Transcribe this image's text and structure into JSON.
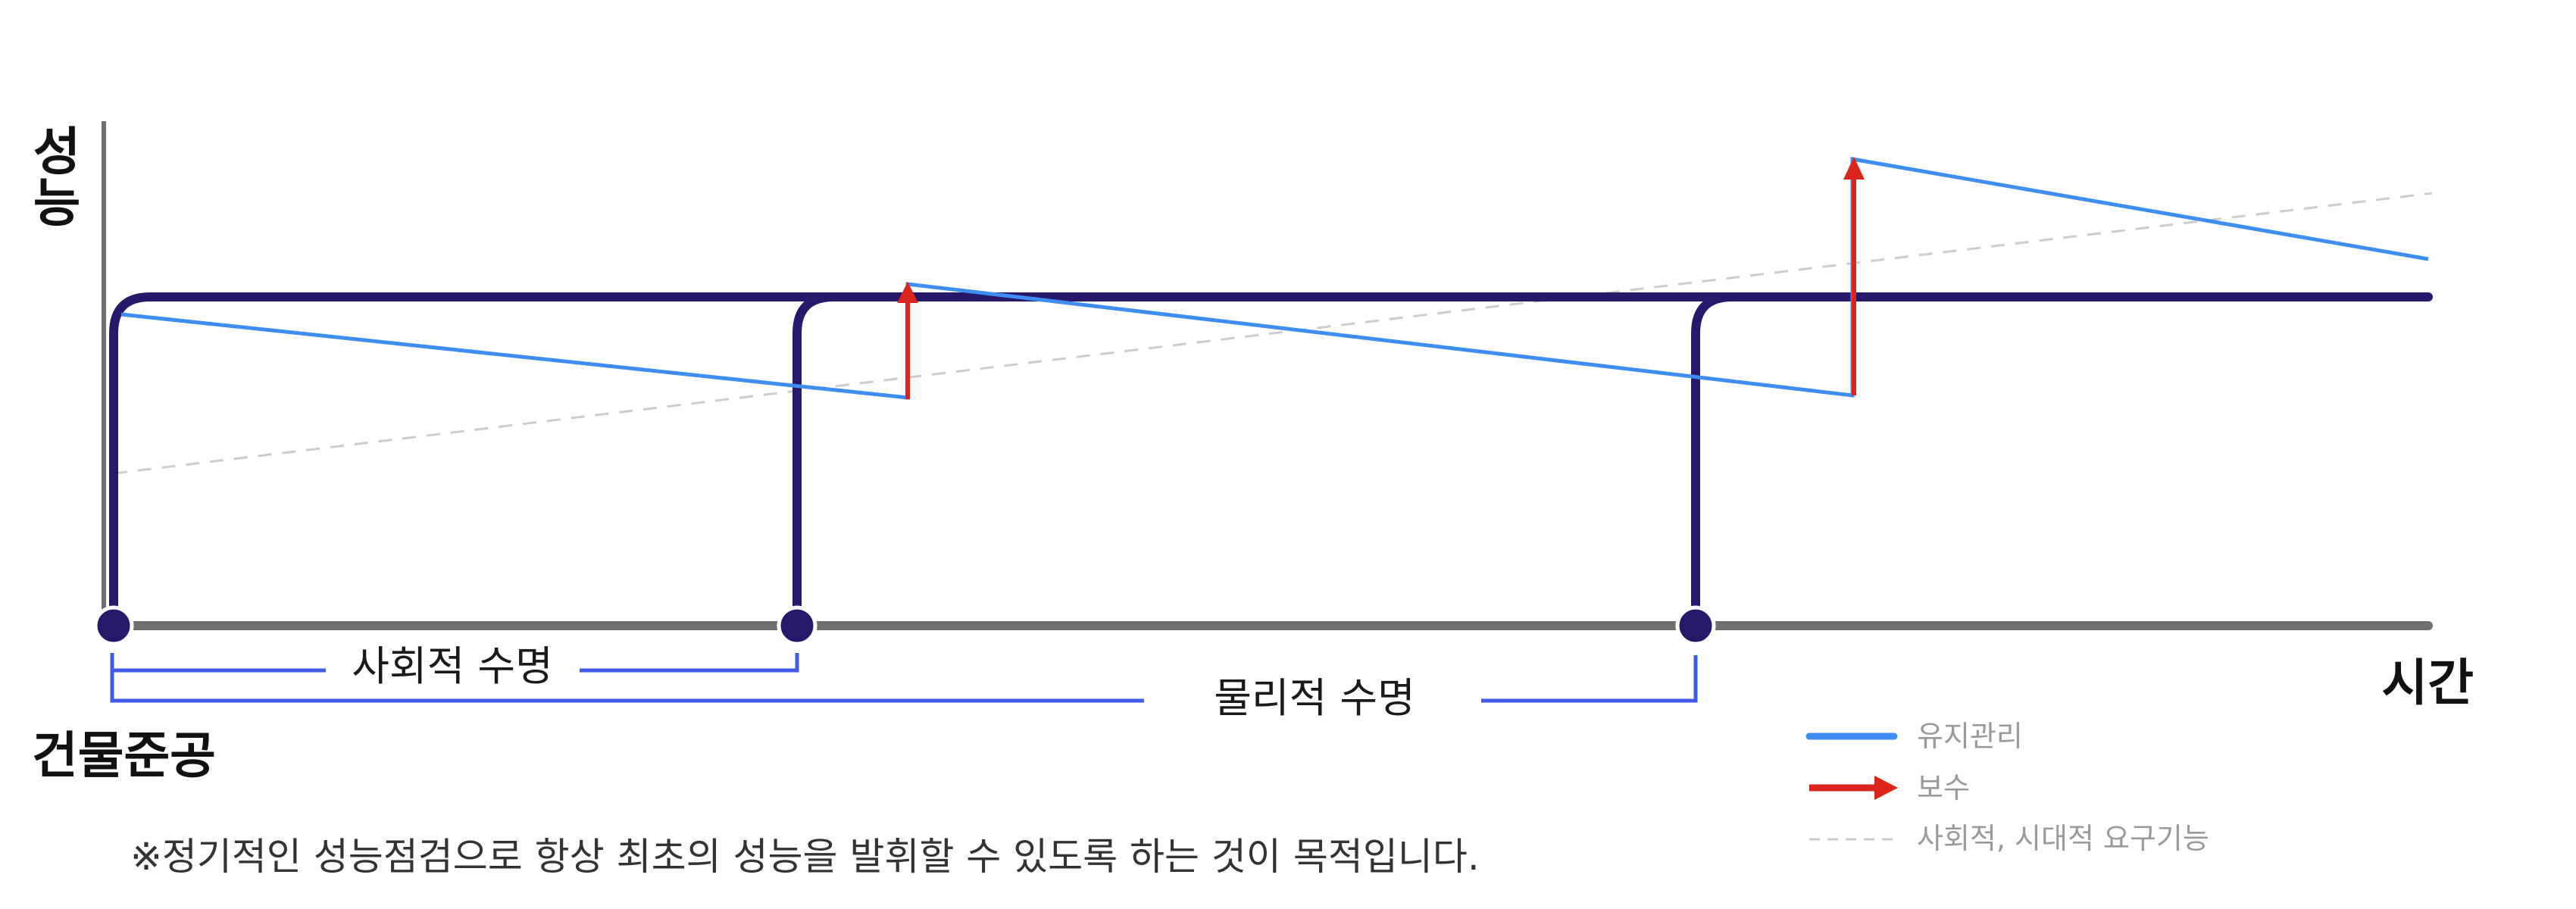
{
  "labels": {
    "y_axis": "성능",
    "x_axis": "시간",
    "start_point": "건물준공",
    "social_life": "사회적 수명",
    "physical_life": "물리적 수명",
    "note": "※정기적인 성능점검으로 항상 최초의 성능을 발휘할 수 있도록 하는 것이 목적입니다."
  },
  "legend": {
    "items": [
      {
        "key": "maintenance",
        "label": "유지관리",
        "style": "solid-line",
        "color": "#3d8ef0"
      },
      {
        "key": "repair",
        "label": "보수",
        "style": "arrow",
        "color": "#d9251c"
      },
      {
        "key": "demand",
        "label": "사회적, 시대적 요구기능",
        "style": "dashed-line",
        "color": "#cccccc"
      }
    ]
  },
  "colors": {
    "performance_curve": "#27186b",
    "baseline": "#6f6f6f",
    "maintenance": "#3d8ef0",
    "repair": "#d9251c",
    "lifespan_bracket": "#3f5ae6",
    "demand": "#cccccc",
    "legend_text": "#9a9a9a"
  }
}
